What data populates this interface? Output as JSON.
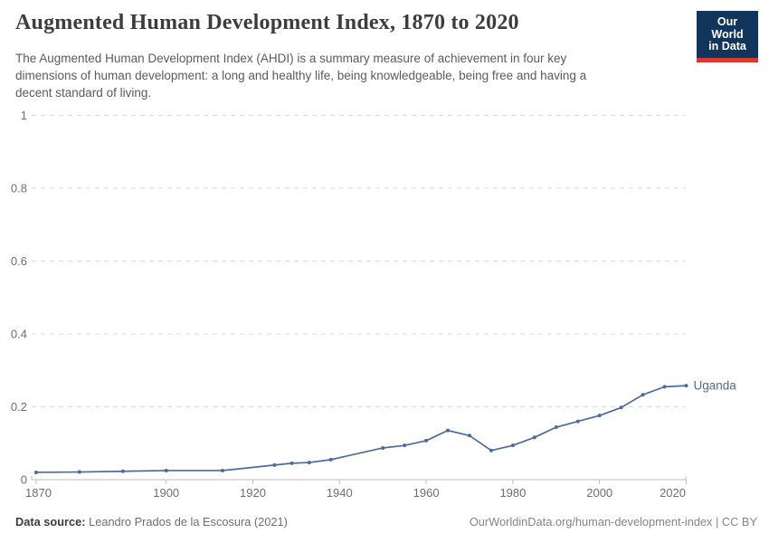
{
  "header": {
    "title": "Augmented Human Development Index, 1870 to 2020",
    "subtitle_lines": [
      "The Augmented Human Development Index (AHDI) is a summary measure of achievement in four key",
      "dimensions of human development: a long and healthy life, being knowledgeable, being free and having a",
      "decent standard of living."
    ],
    "logo": {
      "line1": "Our World",
      "line2": "in Data",
      "bg_color": "#12355b",
      "accent_color": "#d73a31"
    }
  },
  "chart_data": {
    "type": "line",
    "title": "Augmented Human Development Index, 1870 to 2020",
    "xlabel": "",
    "ylabel": "",
    "xlim": [
      1870,
      2020
    ],
    "ylim": [
      0,
      1
    ],
    "x_ticks": [
      1870,
      1900,
      1920,
      1940,
      1960,
      1980,
      2000,
      2020
    ],
    "y_ticks": [
      0,
      0.2,
      0.4,
      0.6,
      0.8,
      1
    ],
    "y_tick_labels": [
      "0",
      "0.2",
      "0.4",
      "0.6",
      "0.8",
      "1"
    ],
    "grid": "horizontal-dashed",
    "legend_position": "end-of-line",
    "colors": {
      "line": "#4c6a9c",
      "gridline": "#d9d9d9",
      "axis": "#bcbcbc",
      "tick_label": "#6e6e6e"
    },
    "series": [
      {
        "name": "Uganda",
        "color": "#4c6a9c",
        "points": [
          [
            1870,
            0.02
          ],
          [
            1880,
            0.021
          ],
          [
            1890,
            0.023
          ],
          [
            1900,
            0.025
          ],
          [
            1913,
            0.025
          ],
          [
            1925,
            0.04
          ],
          [
            1929,
            0.045
          ],
          [
            1933,
            0.047
          ],
          [
            1938,
            0.055
          ],
          [
            1950,
            0.087
          ],
          [
            1955,
            0.094
          ],
          [
            1960,
            0.107
          ],
          [
            1965,
            0.135
          ],
          [
            1970,
            0.121
          ],
          [
            1975,
            0.08
          ],
          [
            1980,
            0.094
          ],
          [
            1985,
            0.116
          ],
          [
            1990,
            0.144
          ],
          [
            1995,
            0.16
          ],
          [
            2000,
            0.176
          ],
          [
            2005,
            0.198
          ],
          [
            2010,
            0.233
          ],
          [
            2015,
            0.255
          ],
          [
            2020,
            0.258
          ]
        ]
      }
    ]
  },
  "footer": {
    "datasource_label": "Data source:",
    "datasource_value": " Leandro Prados de la Escosura (2021)",
    "right_text": "OurWorldinData.org/human-development-index | CC BY"
  }
}
